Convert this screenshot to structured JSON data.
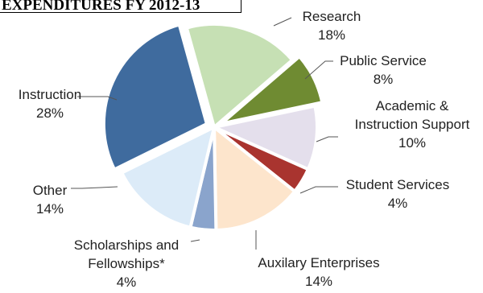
{
  "chart_data": {
    "type": "pie",
    "title": "EXPENDITURES FY 2012-13",
    "slices": [
      {
        "label_lines": [
          "Research"
        ],
        "value_text": "18%",
        "value": 18,
        "color": "#c6e0b4",
        "explode": 0
      },
      {
        "label_lines": [
          "Public Service"
        ],
        "value_text": "8%",
        "value": 8,
        "color": "#6f8b32",
        "explode": 1
      },
      {
        "label_lines": [
          "Academic &",
          "Instruction Support"
        ],
        "value_text": "10%",
        "value": 10,
        "color": "#e4dfec",
        "explode": 0
      },
      {
        "label_lines": [
          "Student Services"
        ],
        "value_text": "4%",
        "value": 4,
        "color": "#a9342f",
        "explode": 0
      },
      {
        "label_lines": [
          "Auxilary Enterprises"
        ],
        "value_text": "14%",
        "value": 14,
        "color": "#fde5cc",
        "explode": 0
      },
      {
        "label_lines": [
          "Scholarships and",
          "Fellowships*"
        ],
        "value_text": "4%",
        "value": 4,
        "color": "#8aa4cc",
        "explode": 0
      },
      {
        "label_lines": [
          "Other"
        ],
        "value_text": "14%",
        "value": 14,
        "color": "#dcebf8",
        "explode": 0
      },
      {
        "label_lines": [
          "Instruction"
        ],
        "value_text": "28%",
        "value": 28,
        "color": "#3f6b9e",
        "explode": 1
      }
    ]
  }
}
